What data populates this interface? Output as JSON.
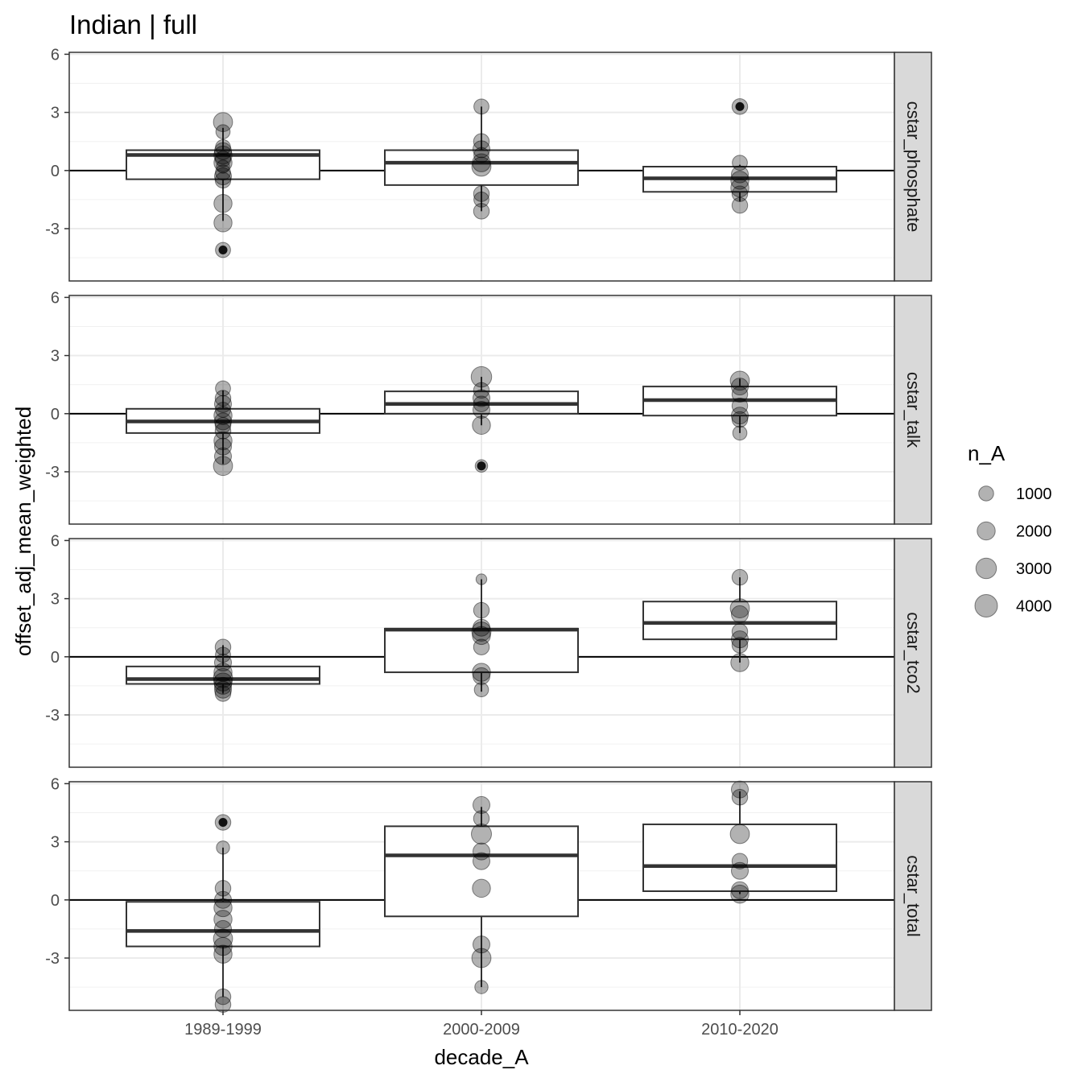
{
  "title": "Indian | full",
  "xlabel": "decade_A",
  "ylabel": "offset_adj_mean_weighted",
  "legend": {
    "title": "n_A",
    "position": "right",
    "sizes": [
      1000,
      2000,
      3000,
      4000
    ]
  },
  "chart_data": {
    "type": "boxplot",
    "title": "Indian | full",
    "xlabel": "decade_A",
    "ylabel": "offset_adj_mean_weighted",
    "categories": [
      "1989-1999",
      "2000-2009",
      "2010-2020"
    ],
    "ylim": [
      -5.7,
      6.1
    ],
    "yticks": [
      -3,
      0,
      3,
      6
    ],
    "grid": true,
    "facet_layout": "rows",
    "facets": [
      {
        "name": "cstar_phosphate",
        "boxes": [
          {
            "q1": -0.45,
            "median": 0.8,
            "q3": 1.05,
            "whisker_low": -2.6,
            "whisker_high": 2.2,
            "outliers": [
              -4.1
            ]
          },
          {
            "q1": -0.75,
            "median": 0.4,
            "q3": 1.05,
            "whisker_low": -2.1,
            "whisker_high": 3.3,
            "outliers": []
          },
          {
            "q1": -1.1,
            "median": -0.4,
            "q3": 0.2,
            "whisker_low": -1.6,
            "whisker_high": 0.3,
            "outliers": [
              3.3
            ]
          }
        ],
        "points": [
          {
            "x": 0,
            "y": 2.5,
            "n": 3500
          },
          {
            "x": 0,
            "y": 2.0,
            "n": 1500
          },
          {
            "x": 0,
            "y": 1.2,
            "n": 1800
          },
          {
            "x": 0,
            "y": 1.0,
            "n": 2500
          },
          {
            "x": 0,
            "y": 0.8,
            "n": 3000
          },
          {
            "x": 0,
            "y": 0.6,
            "n": 2000
          },
          {
            "x": 0,
            "y": 0.4,
            "n": 3000
          },
          {
            "x": 0,
            "y": 0.2,
            "n": 1200
          },
          {
            "x": 0,
            "y": -0.1,
            "n": 1800
          },
          {
            "x": 0,
            "y": -0.3,
            "n": 2500
          },
          {
            "x": 0,
            "y": -0.5,
            "n": 2000
          },
          {
            "x": 0,
            "y": -1.7,
            "n": 3000
          },
          {
            "x": 0,
            "y": -2.7,
            "n": 3000
          },
          {
            "x": 0,
            "y": -4.1,
            "n": 1800
          },
          {
            "x": 1,
            "y": 3.3,
            "n": 1800
          },
          {
            "x": 1,
            "y": 1.5,
            "n": 2000
          },
          {
            "x": 1,
            "y": 1.1,
            "n": 2500
          },
          {
            "x": 1,
            "y": 0.8,
            "n": 1800
          },
          {
            "x": 1,
            "y": 0.4,
            "n": 3000
          },
          {
            "x": 1,
            "y": 0.2,
            "n": 3500
          },
          {
            "x": 1,
            "y": -1.2,
            "n": 2000
          },
          {
            "x": 1,
            "y": -1.5,
            "n": 1800
          },
          {
            "x": 1,
            "y": -2.1,
            "n": 2000
          },
          {
            "x": 2,
            "y": 3.3,
            "n": 2000
          },
          {
            "x": 2,
            "y": 0.4,
            "n": 1800
          },
          {
            "x": 2,
            "y": -0.2,
            "n": 2500
          },
          {
            "x": 2,
            "y": -0.5,
            "n": 3000
          },
          {
            "x": 2,
            "y": -0.9,
            "n": 3000
          },
          {
            "x": 2,
            "y": -1.2,
            "n": 2000
          },
          {
            "x": 2,
            "y": -1.8,
            "n": 2000
          }
        ]
      },
      {
        "name": "cstar_talk",
        "boxes": [
          {
            "q1": -1.0,
            "median": -0.4,
            "q3": 0.25,
            "whisker_low": -2.6,
            "whisker_high": 1.2,
            "outliers": []
          },
          {
            "q1": 0.0,
            "median": 0.5,
            "q3": 1.15,
            "whisker_low": -0.6,
            "whisker_high": 1.9,
            "outliers": [
              -2.7
            ]
          },
          {
            "q1": -0.1,
            "median": 0.7,
            "q3": 1.4,
            "whisker_low": -1.0,
            "whisker_high": 1.8,
            "outliers": []
          }
        ],
        "points": [
          {
            "x": 0,
            "y": 1.3,
            "n": 1800
          },
          {
            "x": 0,
            "y": 0.8,
            "n": 2000
          },
          {
            "x": 0,
            "y": 0.5,
            "n": 2500
          },
          {
            "x": 0,
            "y": 0.2,
            "n": 1800
          },
          {
            "x": 0,
            "y": -0.1,
            "n": 3000
          },
          {
            "x": 0,
            "y": -0.4,
            "n": 2500
          },
          {
            "x": 0,
            "y": -0.6,
            "n": 2000
          },
          {
            "x": 0,
            "y": -0.9,
            "n": 2000
          },
          {
            "x": 0,
            "y": -1.4,
            "n": 3000
          },
          {
            "x": 0,
            "y": -1.7,
            "n": 2500
          },
          {
            "x": 0,
            "y": -2.2,
            "n": 2500
          },
          {
            "x": 0,
            "y": -2.7,
            "n": 3500
          },
          {
            "x": 1,
            "y": 1.9,
            "n": 4200
          },
          {
            "x": 1,
            "y": 1.2,
            "n": 2000
          },
          {
            "x": 1,
            "y": 0.8,
            "n": 2500
          },
          {
            "x": 1,
            "y": 0.5,
            "n": 2000
          },
          {
            "x": 1,
            "y": 0.2,
            "n": 2500
          },
          {
            "x": 1,
            "y": -0.6,
            "n": 3000
          },
          {
            "x": 1,
            "y": -2.7,
            "n": 1000
          },
          {
            "x": 2,
            "y": 1.7,
            "n": 3500
          },
          {
            "x": 2,
            "y": 1.4,
            "n": 2500
          },
          {
            "x": 2,
            "y": 1.0,
            "n": 2000
          },
          {
            "x": 2,
            "y": 0.4,
            "n": 2000
          },
          {
            "x": 2,
            "y": -0.1,
            "n": 2500
          },
          {
            "x": 2,
            "y": -0.3,
            "n": 2000
          },
          {
            "x": 2,
            "y": -1.0,
            "n": 1500
          }
        ]
      },
      {
        "name": "cstar_tco2",
        "boxes": [
          {
            "q1": -1.4,
            "median": -1.15,
            "q3": -0.5,
            "whisker_low": -1.9,
            "whisker_high": 0.6,
            "outliers": []
          },
          {
            "q1": -0.8,
            "median": 1.4,
            "q3": 1.45,
            "whisker_low": -1.8,
            "whisker_high": 4.0,
            "outliers": []
          },
          {
            "q1": 0.9,
            "median": 1.75,
            "q3": 2.85,
            "whisker_low": -0.3,
            "whisker_high": 4.1,
            "outliers": []
          }
        ],
        "points": [
          {
            "x": 0,
            "y": 0.5,
            "n": 2000
          },
          {
            "x": 0,
            "y": 0.1,
            "n": 1800
          },
          {
            "x": 0,
            "y": -0.3,
            "n": 2500
          },
          {
            "x": 0,
            "y": -0.8,
            "n": 3000
          },
          {
            "x": 0,
            "y": -1.1,
            "n": 3500
          },
          {
            "x": 0,
            "y": -1.3,
            "n": 3000
          },
          {
            "x": 0,
            "y": -1.5,
            "n": 2500
          },
          {
            "x": 0,
            "y": -1.7,
            "n": 2500
          },
          {
            "x": 0,
            "y": -1.9,
            "n": 2000
          },
          {
            "x": 1,
            "y": 4.0,
            "n": 600
          },
          {
            "x": 1,
            "y": 2.4,
            "n": 2000
          },
          {
            "x": 1,
            "y": 1.5,
            "n": 2500
          },
          {
            "x": 1,
            "y": 1.3,
            "n": 3500
          },
          {
            "x": 1,
            "y": 1.1,
            "n": 3000
          },
          {
            "x": 1,
            "y": 0.5,
            "n": 2000
          },
          {
            "x": 1,
            "y": -0.8,
            "n": 3000
          },
          {
            "x": 1,
            "y": -1.0,
            "n": 2500
          },
          {
            "x": 1,
            "y": -1.7,
            "n": 1500
          },
          {
            "x": 2,
            "y": 4.1,
            "n": 2000
          },
          {
            "x": 2,
            "y": 2.5,
            "n": 3500
          },
          {
            "x": 2,
            "y": 2.2,
            "n": 2500
          },
          {
            "x": 2,
            "y": 1.3,
            "n": 2000
          },
          {
            "x": 2,
            "y": 0.9,
            "n": 2500
          },
          {
            "x": 2,
            "y": 0.6,
            "n": 2000
          },
          {
            "x": 2,
            "y": -0.3,
            "n": 3000
          }
        ]
      },
      {
        "name": "cstar_total",
        "boxes": [
          {
            "q1": -2.4,
            "median": -1.6,
            "q3": -0.1,
            "whisker_low": -5.0,
            "whisker_high": 2.7,
            "outliers": [
              4.0
            ]
          },
          {
            "q1": -0.85,
            "median": 2.3,
            "q3": 3.8,
            "whisker_low": -4.5,
            "whisker_high": 4.8,
            "outliers": []
          },
          {
            "q1": 0.45,
            "median": 1.75,
            "q3": 3.9,
            "whisker_low": 0.3,
            "whisker_high": 5.6,
            "outliers": []
          }
        ],
        "points": [
          {
            "x": 0,
            "y": 4.0,
            "n": 2000
          },
          {
            "x": 0,
            "y": 2.7,
            "n": 1200
          },
          {
            "x": 0,
            "y": 0.6,
            "n": 2000
          },
          {
            "x": 0,
            "y": 0.0,
            "n": 2500
          },
          {
            "x": 0,
            "y": -0.4,
            "n": 3000
          },
          {
            "x": 0,
            "y": -1.0,
            "n": 3000
          },
          {
            "x": 0,
            "y": -1.5,
            "n": 2500
          },
          {
            "x": 0,
            "y": -2.0,
            "n": 3500
          },
          {
            "x": 0,
            "y": -2.4,
            "n": 3000
          },
          {
            "x": 0,
            "y": -2.8,
            "n": 3000
          },
          {
            "x": 0,
            "y": -5.0,
            "n": 2000
          },
          {
            "x": 0,
            "y": -5.4,
            "n": 2000
          },
          {
            "x": 1,
            "y": 4.9,
            "n": 2500
          },
          {
            "x": 1,
            "y": 4.2,
            "n": 2000
          },
          {
            "x": 1,
            "y": 3.4,
            "n": 4000
          },
          {
            "x": 1,
            "y": 2.5,
            "n": 2500
          },
          {
            "x": 1,
            "y": 2.0,
            "n": 2500
          },
          {
            "x": 1,
            "y": 0.6,
            "n": 3000
          },
          {
            "x": 1,
            "y": -2.3,
            "n": 2500
          },
          {
            "x": 1,
            "y": -3.0,
            "n": 3500
          },
          {
            "x": 1,
            "y": -4.5,
            "n": 1200
          },
          {
            "x": 2,
            "y": 5.7,
            "n": 2500
          },
          {
            "x": 2,
            "y": 5.3,
            "n": 2000
          },
          {
            "x": 2,
            "y": 3.4,
            "n": 3500
          },
          {
            "x": 2,
            "y": 2.0,
            "n": 2000
          },
          {
            "x": 2,
            "y": 1.5,
            "n": 2500
          },
          {
            "x": 2,
            "y": 0.5,
            "n": 2500
          },
          {
            "x": 2,
            "y": 0.3,
            "n": 3000
          }
        ]
      }
    ]
  }
}
